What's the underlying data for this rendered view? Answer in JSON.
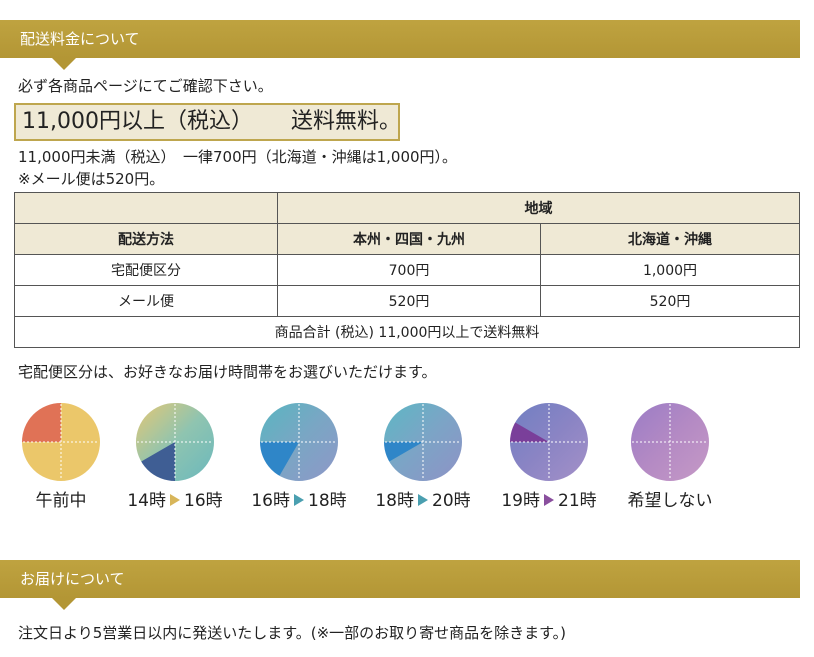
{
  "shipping_section": {
    "title": "配送料金について",
    "note": "必ず各商品ページにてご確認下さい。",
    "highlight_left": "11,000円以上（税込）",
    "highlight_right": "送料無料。",
    "line_under": "11,000円未満（税込）　一律700円（北海道・沖縄は1,000円）。",
    "mail_note": "※メール便は520円。",
    "colors": {
      "band": "#b39635",
      "highlight_bg": "#efe9d5",
      "header_bg": "#efe9d5"
    }
  },
  "table": {
    "region_header": "地域",
    "method_header": "配送方法",
    "col_honshu": "本州・四国・九州",
    "col_hokkaido": "北海道・沖縄",
    "rows": [
      {
        "method": "宅配便区分",
        "honshu": "700円",
        "hokkaido": "1,000円"
      },
      {
        "method": "メール便",
        "honshu": "520円",
        "hokkaido": "520円"
      }
    ],
    "footer": "商品合計 (税込) 11,000円以上で送料無料"
  },
  "time_note": "宅配便区分は、お好きなお届け時間帯をお選びいただけます。",
  "time_slots": [
    {
      "label": "午前中",
      "icon": "clock-morning-icon"
    },
    {
      "label_from": "14時",
      "label_to": "16時",
      "arrow_color": "#d8b65a",
      "icon": "clock-14-16-icon"
    },
    {
      "label_from": "16時",
      "label_to": "18時",
      "arrow_color": "#4a9fb0",
      "icon": "clock-16-18-icon"
    },
    {
      "label_from": "18時",
      "label_to": "20時",
      "arrow_color": "#4a9fb0",
      "icon": "clock-18-20-icon"
    },
    {
      "label_from": "19時",
      "label_to": "21時",
      "arrow_color": "#8a4f9e",
      "icon": "clock-19-21-icon"
    },
    {
      "label": "希望しない",
      "icon": "clock-none-icon"
    }
  ],
  "delivery_section": {
    "title": "お届けについて",
    "note": "注文日より5営業日以内に発送いたします。(※一部のお取り寄せ商品を除きます。)"
  }
}
